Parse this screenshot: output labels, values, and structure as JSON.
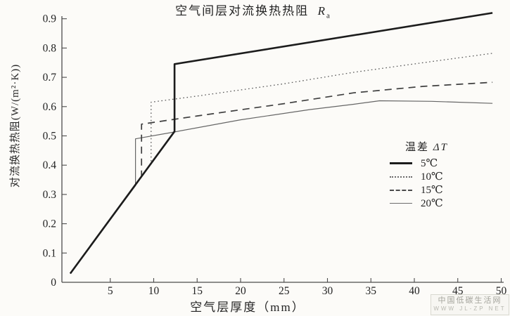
{
  "title": {
    "text": "空气间层对流换热热阻",
    "r_symbol": "R",
    "r_subscript": "a"
  },
  "axes": {
    "x": {
      "label": "空气层厚度（mm）"
    },
    "y": {
      "label": "对流换热热阻(W/(m²·K))"
    }
  },
  "legend": {
    "header_prefix": "温差",
    "header_symbol": "ΔT",
    "items": [
      {
        "label": "5℃",
        "style": "solid-thick"
      },
      {
        "label": "10℃",
        "style": "dotted"
      },
      {
        "label": "15℃",
        "style": "dashed"
      },
      {
        "label": "20℃",
        "style": "solid-thin"
      }
    ]
  },
  "watermark": {
    "line1": "中国低碳生活网",
    "line2": "WWW JL-ZP NET"
  },
  "chart_data": {
    "type": "line",
    "title": "空气间层对流换热热阻 Ra",
    "xlabel": "空气层厚度（mm）",
    "ylabel": "对流换热热阻(W/(m²·K))",
    "xlim": [
      0,
      50.5
    ],
    "ylim": [
      0,
      0.92
    ],
    "x_ticks": [
      5,
      10,
      15,
      20,
      25,
      30,
      35,
      40,
      45,
      50
    ],
    "y_ticks": [
      0,
      0.1,
      0.2,
      0.3,
      0.4,
      0.5,
      0.6,
      0.7,
      0.8,
      0.9
    ],
    "grid": false,
    "legend_position": "right-middle",
    "legend_title": "温差 ΔT",
    "series": [
      {
        "name": "5℃",
        "style": "solid-thick",
        "points": [
          [
            0.4,
            0.03
          ],
          [
            12.4,
            0.515
          ],
          [
            12.4,
            0.745
          ],
          [
            49,
            0.92
          ]
        ]
      },
      {
        "name": "10℃",
        "style": "dotted",
        "points": [
          [
            0.4,
            0.03
          ],
          [
            9.7,
            0.405
          ],
          [
            9.7,
            0.615
          ],
          [
            15,
            0.636
          ],
          [
            25,
            0.678
          ],
          [
            33,
            0.717
          ],
          [
            41,
            0.75
          ],
          [
            49,
            0.782
          ]
        ]
      },
      {
        "name": "15℃",
        "style": "dashed",
        "points": [
          [
            0.4,
            0.03
          ],
          [
            8.6,
            0.36
          ],
          [
            8.6,
            0.54
          ],
          [
            15,
            0.568
          ],
          [
            25,
            0.61
          ],
          [
            33,
            0.647
          ],
          [
            41,
            0.669
          ],
          [
            49,
            0.683
          ]
        ]
      },
      {
        "name": "20℃",
        "style": "solid-thin",
        "points": [
          [
            0.4,
            0.03
          ],
          [
            7.9,
            0.33
          ],
          [
            7.9,
            0.49
          ],
          [
            12.3,
            0.513
          ],
          [
            20,
            0.555
          ],
          [
            28,
            0.59
          ],
          [
            33,
            0.608
          ],
          [
            36,
            0.62
          ],
          [
            42,
            0.618
          ],
          [
            49,
            0.611
          ]
        ]
      }
    ]
  }
}
